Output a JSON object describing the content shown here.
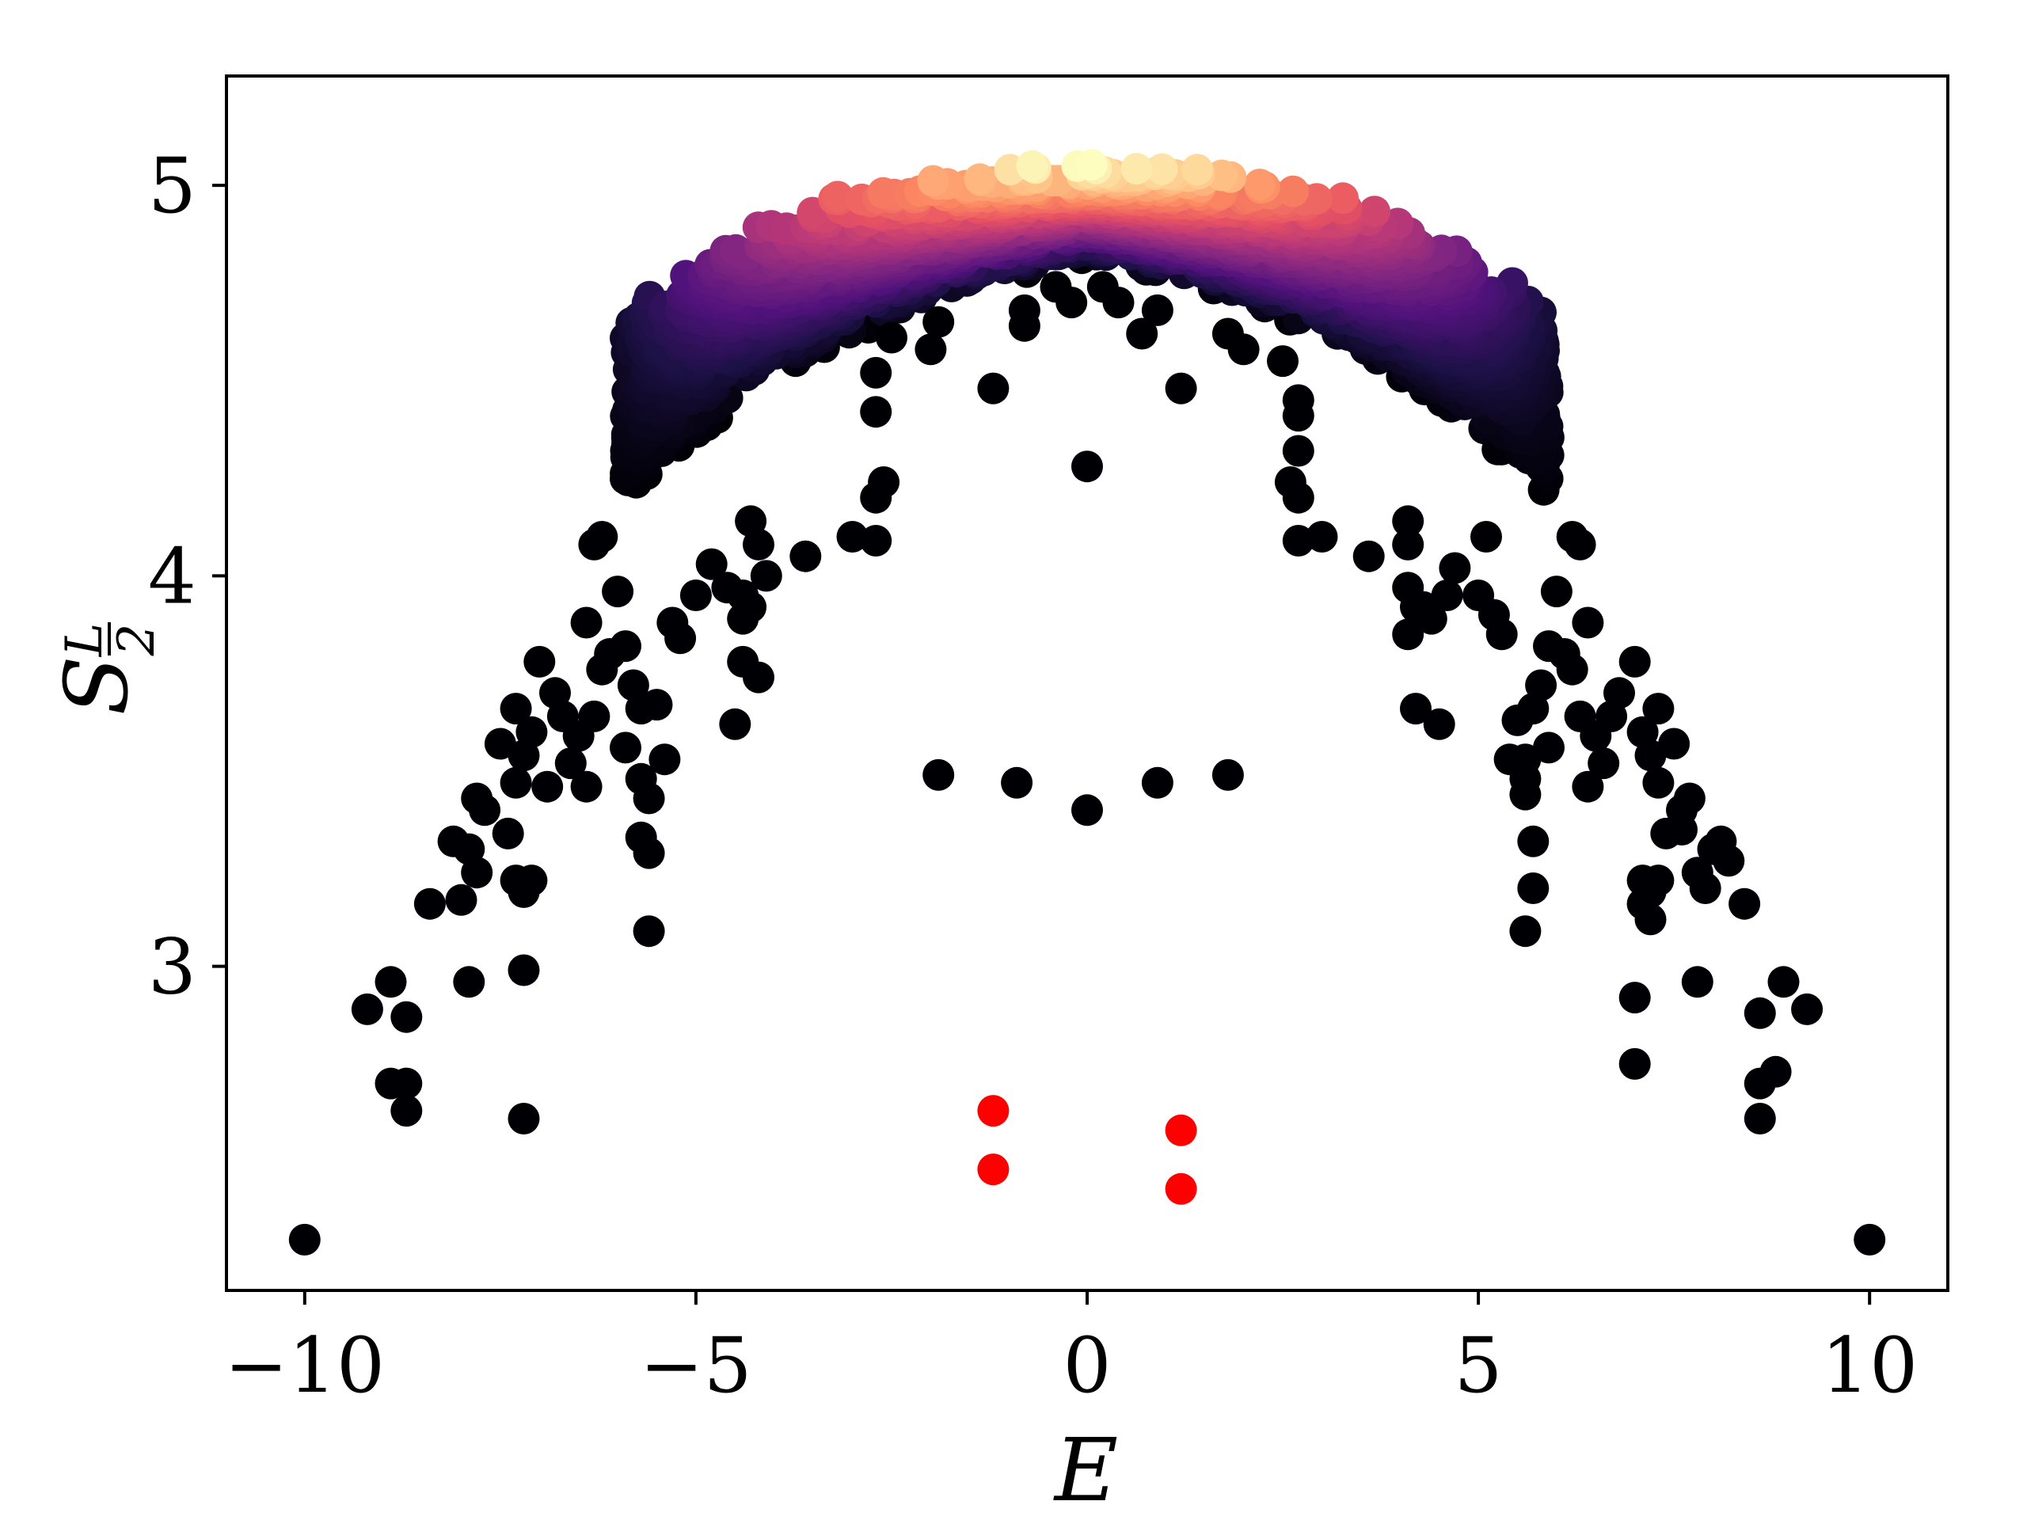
{
  "chart_data": {
    "type": "scatter",
    "title": "",
    "xlabel": "E",
    "ylabel_main": "S",
    "ylabel_sub_num": "L",
    "ylabel_sub_den": "2",
    "xlim": [
      -11,
      11
    ],
    "ylim": [
      2.17,
      5.28
    ],
    "xticks": [
      -10,
      -5,
      0,
      5,
      10
    ],
    "xtick_labels": [
      "−10",
      "−5",
      "0",
      "5",
      "10"
    ],
    "yticks": [
      3,
      4,
      5
    ],
    "ytick_labels": [
      "3",
      "4",
      "5"
    ],
    "grid": false,
    "legend": "none",
    "colormap": "magma",
    "colormap_stops": [
      "#000004",
      "#1d1147",
      "#51127c",
      "#822681",
      "#b73779",
      "#e75263",
      "#fc8961",
      "#fec488",
      "#fcfdbf"
    ],
    "series": [
      {
        "points": [
          [
            -10.0,
            2.3
          ],
          [
            10.0,
            2.3
          ],
          [
            -9.2,
            2.89
          ],
          [
            9.2,
            2.89
          ],
          [
            -8.9,
            2.96
          ],
          [
            8.9,
            2.96
          ],
          [
            -8.7,
            2.87
          ],
          [
            8.6,
            2.88
          ],
          [
            -8.9,
            2.7
          ],
          [
            8.8,
            2.73
          ],
          [
            -8.7,
            2.7
          ],
          [
            8.6,
            2.7
          ],
          [
            -8.7,
            2.63
          ],
          [
            8.6,
            2.61
          ],
          [
            -8.4,
            3.16
          ],
          [
            8.4,
            3.16
          ],
          [
            -8.0,
            3.17
          ],
          [
            7.9,
            3.2
          ],
          [
            -7.9,
            2.96
          ],
          [
            7.8,
            2.96
          ],
          [
            -7.2,
            2.61
          ],
          [
            -7.2,
            2.99
          ],
          [
            7.0,
            2.92
          ],
          [
            7.0,
            2.75
          ],
          [
            -8.1,
            3.32
          ],
          [
            -7.9,
            3.3
          ],
          [
            -7.8,
            3.24
          ],
          [
            -7.8,
            3.43
          ],
          [
            -7.7,
            3.4
          ],
          [
            -7.5,
            3.57
          ],
          [
            -7.4,
            3.34
          ],
          [
            -7.3,
            3.22
          ],
          [
            -7.2,
            3.19
          ],
          [
            -7.1,
            3.22
          ],
          [
            -7.3,
            3.47
          ],
          [
            -7.2,
            3.54
          ],
          [
            -7.3,
            3.66
          ],
          [
            -7.1,
            3.6
          ],
          [
            -7.0,
            3.78
          ],
          [
            -6.8,
            3.7
          ],
          [
            -6.7,
            3.64
          ],
          [
            -6.9,
            3.46
          ],
          [
            -6.6,
            3.52
          ],
          [
            -6.5,
            3.59
          ],
          [
            -6.3,
            3.64
          ],
          [
            -6.4,
            3.46
          ],
          [
            -6.2,
            3.76
          ],
          [
            -6.4,
            3.88
          ],
          [
            -6.1,
            3.8
          ],
          [
            -6.3,
            4.08
          ],
          [
            -6.2,
            4.1
          ],
          [
            -6.0,
            3.96
          ],
          [
            -5.9,
            3.82
          ],
          [
            -5.8,
            3.72
          ],
          [
            -5.7,
            3.66
          ],
          [
            -5.5,
            3.67
          ],
          [
            -5.9,
            3.56
          ],
          [
            -5.7,
            3.48
          ],
          [
            -5.6,
            3.43
          ],
          [
            -5.7,
            3.33
          ],
          [
            -5.6,
            3.29
          ],
          [
            -5.6,
            3.09
          ],
          [
            -5.4,
            3.53
          ],
          [
            -5.3,
            3.88
          ],
          [
            -5.2,
            3.84
          ],
          [
            -5.0,
            3.95
          ],
          [
            -4.8,
            4.03
          ],
          [
            -4.6,
            3.97
          ],
          [
            -4.4,
            3.95
          ],
          [
            -4.4,
            3.89
          ],
          [
            -4.3,
            3.92
          ],
          [
            -4.4,
            3.78
          ],
          [
            -4.2,
            3.74
          ],
          [
            -4.5,
            3.62
          ],
          [
            -4.3,
            4.14
          ],
          [
            -4.2,
            4.08
          ],
          [
            -4.1,
            4.0
          ],
          [
            -3.6,
            4.05
          ],
          [
            -3.0,
            4.1
          ],
          [
            -2.7,
            4.09
          ],
          [
            -2.7,
            4.2
          ],
          [
            -2.6,
            4.24
          ],
          [
            -2.7,
            4.52
          ],
          [
            -2.7,
            4.42
          ],
          [
            -2.5,
            4.61
          ],
          [
            -2.0,
            4.58
          ],
          [
            -1.9,
            4.65
          ],
          [
            -1.2,
            4.48
          ],
          [
            -0.8,
            4.64
          ],
          [
            -0.8,
            4.68
          ],
          [
            -0.4,
            4.74
          ],
          [
            -0.2,
            4.7
          ],
          [
            0.0,
            4.28
          ],
          [
            0.2,
            4.74
          ],
          [
            0.4,
            4.7
          ],
          [
            0.7,
            4.62
          ],
          [
            0.9,
            4.68
          ],
          [
            1.2,
            4.48
          ],
          [
            1.8,
            4.62
          ],
          [
            2.0,
            4.58
          ],
          [
            2.5,
            4.55
          ],
          [
            2.7,
            4.45
          ],
          [
            2.6,
            4.24
          ],
          [
            2.7,
            4.2
          ],
          [
            2.7,
            4.32
          ],
          [
            2.7,
            4.41
          ],
          [
            2.7,
            4.09
          ],
          [
            3.0,
            4.1
          ],
          [
            3.6,
            4.05
          ],
          [
            4.1,
            4.14
          ],
          [
            4.1,
            4.08
          ],
          [
            4.1,
            3.97
          ],
          [
            4.2,
            3.92
          ],
          [
            4.1,
            3.85
          ],
          [
            4.3,
            3.92
          ],
          [
            4.4,
            3.89
          ],
          [
            4.2,
            3.66
          ],
          [
            4.5,
            3.62
          ],
          [
            4.7,
            4.02
          ],
          [
            4.6,
            3.95
          ],
          [
            5.0,
            3.95
          ],
          [
            5.2,
            3.9
          ],
          [
            5.3,
            3.85
          ],
          [
            5.1,
            4.1
          ],
          [
            5.4,
            3.53
          ],
          [
            5.5,
            3.63
          ],
          [
            5.6,
            3.53
          ],
          [
            5.6,
            3.48
          ],
          [
            5.7,
            3.66
          ],
          [
            5.6,
            3.44
          ],
          [
            5.7,
            3.32
          ],
          [
            5.7,
            3.2
          ],
          [
            5.6,
            3.09
          ],
          [
            5.9,
            3.56
          ],
          [
            5.8,
            3.72
          ],
          [
            5.9,
            3.82
          ],
          [
            6.0,
            3.96
          ],
          [
            6.2,
            4.1
          ],
          [
            6.3,
            4.08
          ],
          [
            6.1,
            3.8
          ],
          [
            6.2,
            3.76
          ],
          [
            6.4,
            3.88
          ],
          [
            6.3,
            3.64
          ],
          [
            6.4,
            3.46
          ],
          [
            6.5,
            3.59
          ],
          [
            6.6,
            3.52
          ],
          [
            6.7,
            3.64
          ],
          [
            6.8,
            3.7
          ],
          [
            7.0,
            3.78
          ],
          [
            7.1,
            3.6
          ],
          [
            7.2,
            3.54
          ],
          [
            7.3,
            3.66
          ],
          [
            7.3,
            3.47
          ],
          [
            7.1,
            3.22
          ],
          [
            7.2,
            3.19
          ],
          [
            7.3,
            3.22
          ],
          [
            7.4,
            3.34
          ],
          [
            7.5,
            3.57
          ],
          [
            7.6,
            3.4
          ],
          [
            7.7,
            3.43
          ],
          [
            7.8,
            3.24
          ],
          [
            8.0,
            3.3
          ],
          [
            8.1,
            3.32
          ],
          [
            7.2,
            3.12
          ],
          [
            7.1,
            3.16
          ],
          [
            8.2,
            3.27
          ],
          [
            7.6,
            3.35
          ]
        ]
      },
      {
        "points": [
          [
            -1.9,
            3.49
          ],
          [
            -0.9,
            3.47
          ],
          [
            0.0,
            3.4
          ],
          [
            0.9,
            3.47
          ],
          [
            1.8,
            3.49
          ]
        ]
      },
      {
        "color": "#ff0000",
        "points": [
          [
            -1.2,
            2.63
          ],
          [
            -1.2,
            2.48
          ],
          [
            1.2,
            2.58
          ],
          [
            1.2,
            2.43
          ]
        ]
      }
    ],
    "band_envelope": {
      "E_range": [
        -5.9,
        5.9
      ],
      "S_peak": 5.0,
      "S_width": 0.35,
      "color_by_density": true
    }
  }
}
